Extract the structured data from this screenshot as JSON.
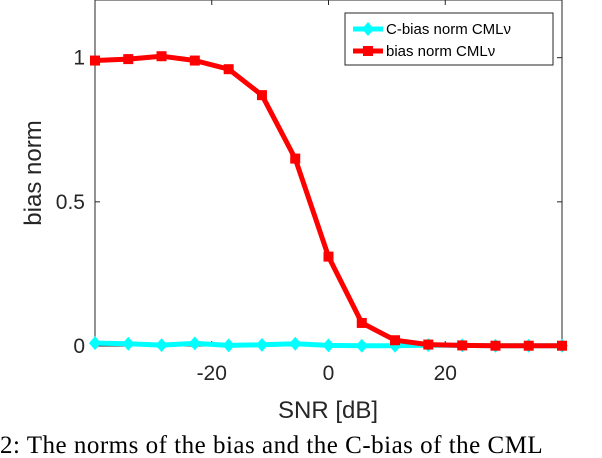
{
  "chart_data": {
    "type": "line",
    "xlabel": "SNR [dB]",
    "ylabel": "bias norm",
    "xlim": [
      -40,
      40
    ],
    "ylim": [
      0,
      1.2
    ],
    "xticks": [
      -20,
      0,
      20
    ],
    "xtick_labels": [
      "-20",
      "0",
      "20"
    ],
    "yticks": [
      0,
      0.5,
      1
    ],
    "ytick_labels": [
      "0",
      "0.5",
      "1"
    ],
    "grid": false,
    "legend_position": "top-right",
    "x": [
      -40,
      -34.3,
      -28.6,
      -22.9,
      -17.1,
      -11.4,
      -5.7,
      0,
      5.7,
      11.4,
      17.1,
      22.9,
      28.6,
      34.3,
      40
    ],
    "series": [
      {
        "name": "C-bias norm CMLν",
        "color": "#00ffff",
        "marker": "diamond",
        "values": [
          0.01,
          0.008,
          0.003,
          0.009,
          0.002,
          0.004,
          0.008,
          0.002,
          0.001,
          0.001,
          0.003,
          0.002,
          0.001,
          0.001,
          0.001
        ]
      },
      {
        "name": "bias norm CMLν",
        "color": "#ff0000",
        "marker": "square",
        "values": [
          0.99,
          0.995,
          1.005,
          0.99,
          0.96,
          0.87,
          0.65,
          0.31,
          0.08,
          0.02,
          0.005,
          0.002,
          0.001,
          0.001,
          0.001
        ]
      }
    ]
  },
  "caption": "2: The norms of the bias and the C-bias of the CML"
}
